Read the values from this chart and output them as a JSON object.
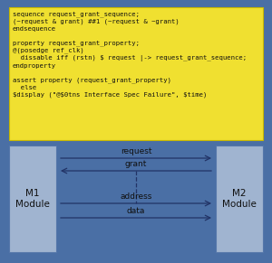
{
  "bg_color": "#4a6fa5",
  "yellow_box_color": "#f0e030",
  "yellow_box_edge": "#c8b800",
  "code_lines": [
    "sequence request_grant_sequence;",
    "(~request & grant) ##1 (~request & ~grant)",
    "endsequence",
    "",
    "property request_grant_property;",
    "@(posedge ref_clk)",
    "  dissable iff (rstn) $ request |-> request_grant_sequence;",
    "endproperty",
    "",
    "assert property (request_grant_property)",
    "  else",
    "$display (\"@$0tns Interface Spec Failure\", $time)"
  ],
  "module_box_color": "#a0b4d0",
  "module_border_color": "#5577aa",
  "m1_label": "M1\nModule",
  "m2_label": "M2\nModule",
  "text_fontsize": 5.2,
  "module_fontsize": 7.5,
  "arrow_fontsize": 6.5,
  "arrow_color": "#223366",
  "arrows": [
    {
      "label": "request",
      "direction": "right"
    },
    {
      "label": "grant",
      "direction": "left"
    },
    {
      "label": "address",
      "direction": "right"
    },
    {
      "label": "data",
      "direction": "right"
    }
  ]
}
